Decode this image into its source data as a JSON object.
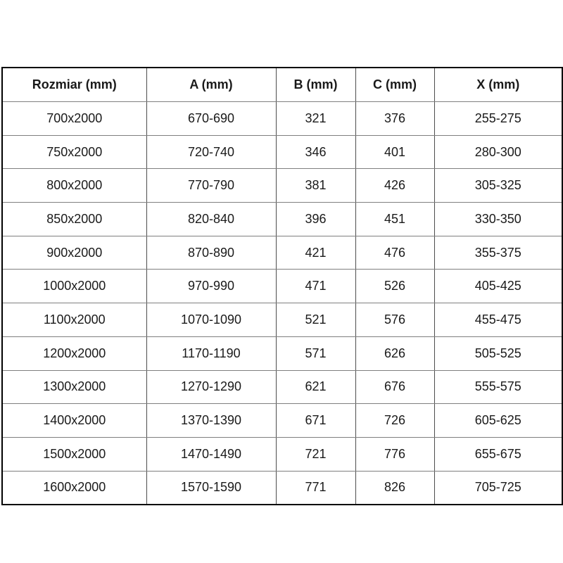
{
  "colors": {
    "background": "#ffffff",
    "outer_border": "#000000",
    "inner_vertical_border": "#4d4d4d",
    "inner_horizontal_border": "#7f7f7f",
    "text": "#1a1a1a"
  },
  "table": {
    "headers": [
      "Rozmiar (mm)",
      "A (mm)",
      "B (mm)",
      "C (mm)",
      "X (mm)"
    ],
    "rows": [
      [
        "700x2000",
        "670-690",
        "321",
        "376",
        "255-275"
      ],
      [
        "750x2000",
        "720-740",
        "346",
        "401",
        "280-300"
      ],
      [
        "800x2000",
        "770-790",
        "381",
        "426",
        "305-325"
      ],
      [
        "850x2000",
        "820-840",
        "396",
        "451",
        "330-350"
      ],
      [
        "900x2000",
        "870-890",
        "421",
        "476",
        "355-375"
      ],
      [
        "1000x2000",
        "970-990",
        "471",
        "526",
        "405-425"
      ],
      [
        "1100x2000",
        "1070-1090",
        "521",
        "576",
        "455-475"
      ],
      [
        "1200x2000",
        "1170-1190",
        "571",
        "626",
        "505-525"
      ],
      [
        "1300x2000",
        "1270-1290",
        "621",
        "676",
        "555-575"
      ],
      [
        "1400x2000",
        "1370-1390",
        "671",
        "726",
        "605-625"
      ],
      [
        "1500x2000",
        "1470-1490",
        "721",
        "776",
        "655-675"
      ],
      [
        "1600x2000",
        "1570-1590",
        "771",
        "826",
        "705-725"
      ]
    ]
  },
  "chart_data": {
    "type": "table",
    "title": "",
    "columns": [
      "Rozmiar (mm)",
      "A (mm)",
      "B (mm)",
      "C (mm)",
      "X (mm)"
    ],
    "rows": [
      [
        "700x2000",
        "670-690",
        321,
        376,
        "255-275"
      ],
      [
        "750x2000",
        "720-740",
        346,
        401,
        "280-300"
      ],
      [
        "800x2000",
        "770-790",
        381,
        426,
        "305-325"
      ],
      [
        "850x2000",
        "820-840",
        396,
        451,
        "330-350"
      ],
      [
        "900x2000",
        "870-890",
        421,
        476,
        "355-375"
      ],
      [
        "1000x2000",
        "970-990",
        471,
        526,
        "405-425"
      ],
      [
        "1100x2000",
        "1070-1090",
        521,
        576,
        "455-475"
      ],
      [
        "1200x2000",
        "1170-1190",
        571,
        626,
        "505-525"
      ],
      [
        "1300x2000",
        "1270-1290",
        621,
        676,
        "555-575"
      ],
      [
        "1400x2000",
        "1370-1390",
        671,
        726,
        "605-625"
      ],
      [
        "1500x2000",
        "1470-1490",
        721,
        776,
        "655-675"
      ],
      [
        "1600x2000",
        "1570-1590",
        771,
        826,
        "705-725"
      ]
    ]
  }
}
